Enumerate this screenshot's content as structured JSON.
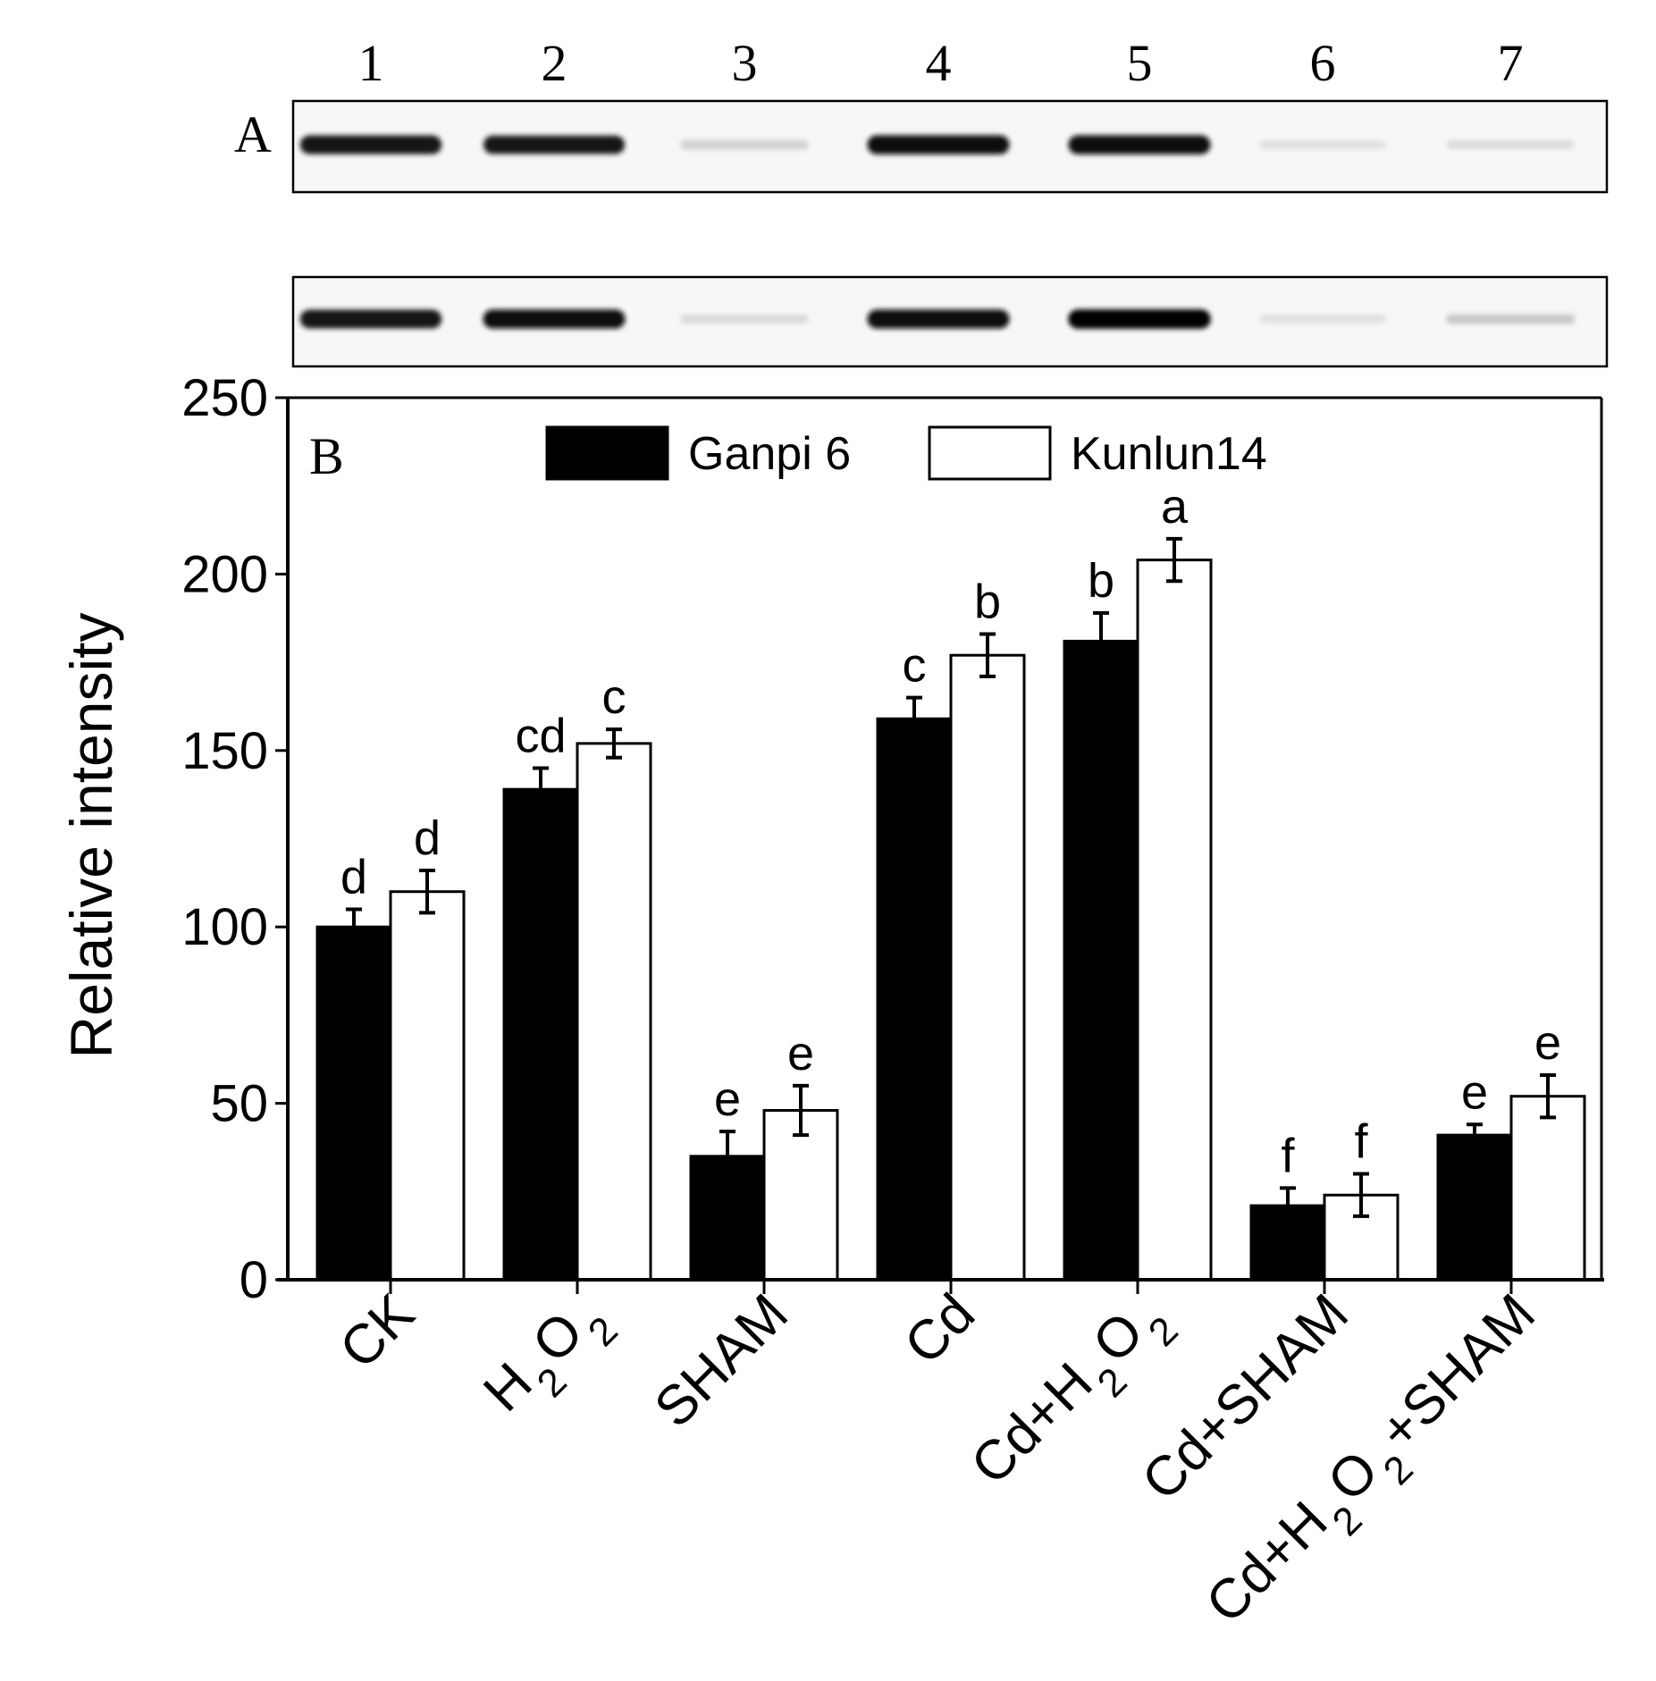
{
  "panel_a": {
    "label": "A",
    "lanes": [
      "1",
      "2",
      "3",
      "4",
      "5",
      "6",
      "7"
    ],
    "gel_rows": [
      {
        "band_intensity": [
          0.92,
          0.9,
          0.18,
          0.95,
          0.95,
          0.12,
          0.14
        ]
      },
      {
        "band_intensity": [
          0.92,
          0.95,
          0.15,
          0.95,
          0.98,
          0.12,
          0.22
        ]
      }
    ]
  },
  "chart_data": {
    "type": "bar",
    "panel_label": "B",
    "ylabel": "Relative intensity",
    "xlabel": "",
    "ylim": [
      0,
      250
    ],
    "yticks": [
      0,
      50,
      100,
      150,
      200,
      250
    ],
    "categories": [
      "CK",
      "H2O2",
      "SHAM",
      "Cd",
      "Cd+H2O2",
      "Cd+SHAM",
      "Cd+H2O2+SHAM"
    ],
    "legend_position": "top-center",
    "series": [
      {
        "name": "Ganpi 6",
        "color": "#000000",
        "values": [
          100,
          139,
          35,
          159,
          181,
          21,
          41
        ],
        "errors": [
          5,
          6,
          7,
          6,
          8,
          5,
          3
        ],
        "letters": [
          "d",
          "cd",
          "e",
          "c",
          "b",
          "f",
          "e"
        ]
      },
      {
        "name": "Kunlun14",
        "color": "#ffffff",
        "values": [
          110,
          152,
          48,
          177,
          204,
          24,
          52
        ],
        "errors": [
          6,
          4,
          7,
          6,
          6,
          6,
          6
        ],
        "letters": [
          "d",
          "c",
          "e",
          "b",
          "a",
          "f",
          "e"
        ]
      }
    ]
  }
}
